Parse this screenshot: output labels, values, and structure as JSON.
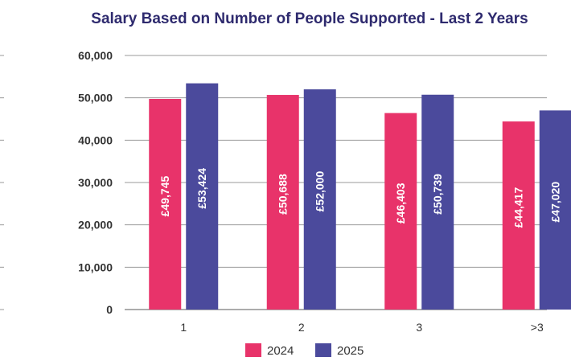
{
  "chart_data": {
    "type": "bar",
    "title": "Salary Based on Number of People Supported - Last 2 Years",
    "xlabel": "",
    "ylabel": "",
    "categories": [
      "1",
      "2",
      "3",
      ">3"
    ],
    "series": [
      {
        "name": "2024",
        "color": "#e8336a",
        "values": [
          49745,
          50688,
          46403,
          44417
        ],
        "labels": [
          "£49,745",
          "£50,688",
          "£46,403",
          "£44,417"
        ]
      },
      {
        "name": "2025",
        "color": "#4b4a9c",
        "values": [
          53424,
          52000,
          50739,
          47020
        ],
        "labels": [
          "£53,424",
          "£52,000",
          "£50,739",
          "£47,020"
        ]
      }
    ],
    "ylim": [
      0,
      60000
    ],
    "yticks": [
      0,
      10000,
      20000,
      30000,
      40000,
      50000,
      60000
    ],
    "ytick_labels": [
      "0",
      "10,000",
      "20,000",
      "30,000",
      "40,000",
      "50,000",
      "60,000"
    ],
    "grid": true,
    "legend_position": "bottom-center"
  }
}
